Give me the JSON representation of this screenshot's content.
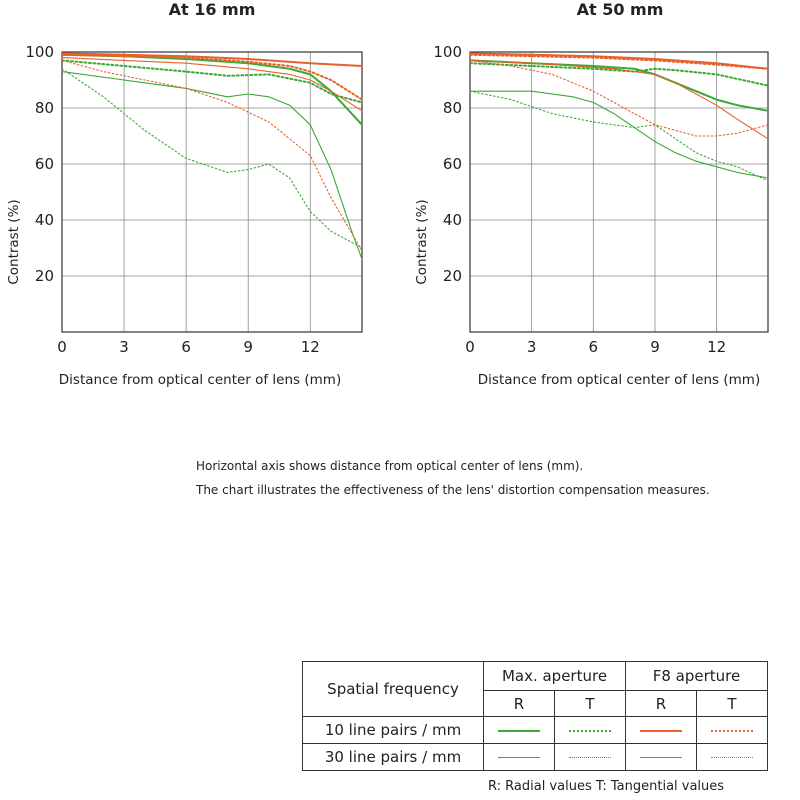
{
  "chart_data": [
    {
      "type": "line",
      "title": "At 16 mm",
      "xlabel": "Distance from optical center of lens (mm)",
      "ylabel": "Contrast (%)",
      "xlim": [
        0,
        14.5
      ],
      "ylim": [
        0,
        100
      ],
      "xticks": [
        "0",
        "3",
        "6",
        "9",
        "12"
      ],
      "yticks": [
        "20",
        "40",
        "60",
        "80",
        "100"
      ],
      "grid": true,
      "series": [
        {
          "name": "Max. aperture R 10 line pairs / mm",
          "color": "#3aaa35",
          "style": "solid",
          "weight": "bold",
          "x": [
            0,
            3,
            6,
            9,
            11,
            12,
            13,
            14.5
          ],
          "y": [
            99,
            98.5,
            97.5,
            96,
            94,
            92,
            86,
            74
          ]
        },
        {
          "name": "Max. aperture T 10 line pairs / mm",
          "color": "#3aaa35",
          "style": "dotted",
          "weight": "bold",
          "x": [
            0,
            3,
            6,
            8,
            10,
            12,
            13,
            14.5
          ],
          "y": [
            97,
            95,
            93,
            91.5,
            92,
            89,
            85,
            82
          ]
        },
        {
          "name": "Max. aperture R 30 line pairs / mm",
          "color": "#3aaa35",
          "style": "solid",
          "weight": "thin",
          "x": [
            0,
            3,
            6,
            8,
            9,
            10,
            11,
            12,
            13,
            14,
            14.5
          ],
          "y": [
            93,
            90,
            87,
            84,
            85,
            84,
            81,
            74,
            58,
            36,
            26
          ]
        },
        {
          "name": "Max. aperture T 30 line pairs / mm",
          "color": "#3aaa35",
          "style": "dotted",
          "weight": "thin",
          "x": [
            0,
            2,
            4,
            6,
            8,
            9,
            10,
            11,
            12,
            13,
            14.5
          ],
          "y": [
            94,
            84,
            72,
            62,
            57,
            58,
            60,
            55,
            43,
            36,
            30
          ]
        },
        {
          "name": "F8 aperture R 10 line pairs / mm",
          "color": "#e8602c",
          "style": "solid",
          "weight": "bold",
          "x": [
            0,
            3,
            6,
            9,
            12,
            14.5
          ],
          "y": [
            99.5,
            99,
            98.5,
            97.5,
            96,
            95
          ]
        },
        {
          "name": "F8 aperture T 10 line pairs / mm",
          "color": "#e8602c",
          "style": "dotted",
          "weight": "bold",
          "x": [
            0,
            3,
            6,
            9,
            11,
            12,
            13,
            14.5
          ],
          "y": [
            99,
            98.5,
            98,
            96.5,
            95,
            93,
            90,
            83
          ]
        },
        {
          "name": "F8 aperture R 30 line pairs / mm",
          "color": "#e8602c",
          "style": "solid",
          "weight": "thin",
          "x": [
            0,
            3,
            6,
            9,
            11,
            12,
            13,
            14.5
          ],
          "y": [
            98,
            97,
            96,
            94,
            92,
            90,
            86,
            79
          ]
        },
        {
          "name": "F8 aperture T 30 line pairs / mm",
          "color": "#e8602c",
          "style": "dotted",
          "weight": "thin",
          "x": [
            0,
            2,
            4,
            6,
            8,
            10,
            12,
            13,
            14.5
          ],
          "y": [
            97,
            93,
            90,
            87,
            82,
            75,
            63,
            48,
            29
          ]
        }
      ]
    },
    {
      "type": "line",
      "title": "At 50 mm",
      "xlabel": "Distance from optical center of lens (mm)",
      "ylabel": "Contrast (%)",
      "xlim": [
        0,
        14.5
      ],
      "ylim": [
        0,
        100
      ],
      "xticks": [
        "0",
        "3",
        "6",
        "9",
        "12"
      ],
      "yticks": [
        "20",
        "40",
        "60",
        "80",
        "100"
      ],
      "grid": true,
      "series": [
        {
          "name": "Max. aperture R 10 line pairs / mm",
          "color": "#3aaa35",
          "style": "solid",
          "weight": "bold",
          "x": [
            0,
            3,
            6,
            8,
            9,
            10,
            11,
            12,
            13,
            14.5
          ],
          "y": [
            97,
            96,
            95,
            94,
            92,
            89,
            86,
            83,
            81,
            79
          ]
        },
        {
          "name": "Max. aperture T 10 line pairs / mm",
          "color": "#3aaa35",
          "style": "dotted",
          "weight": "bold",
          "x": [
            0,
            3,
            6,
            8,
            9,
            10,
            12,
            14.5
          ],
          "y": [
            96,
            95,
            94,
            93,
            94,
            93.5,
            92,
            88
          ]
        },
        {
          "name": "Max. aperture R 30 line pairs / mm",
          "color": "#3aaa35",
          "style": "solid",
          "weight": "thin",
          "x": [
            0,
            3,
            5,
            6,
            7,
            8,
            9,
            10,
            11,
            12,
            13,
            14.5
          ],
          "y": [
            86,
            86,
            84,
            82,
            78,
            73,
            68,
            64,
            61,
            59,
            57,
            55
          ]
        },
        {
          "name": "Max. aperture T 30 line pairs / mm",
          "color": "#3aaa35",
          "style": "dotted",
          "weight": "thin",
          "x": [
            0,
            2,
            4,
            6,
            7,
            8,
            9,
            10,
            11,
            12,
            13,
            14.5
          ],
          "y": [
            86,
            83,
            78,
            75,
            74,
            73,
            74,
            69,
            64,
            61,
            59,
            54
          ]
        },
        {
          "name": "F8 aperture R 10 line pairs / mm",
          "color": "#e8602c",
          "style": "solid",
          "weight": "bold",
          "x": [
            0,
            3,
            6,
            9,
            12,
            14.5
          ],
          "y": [
            99.5,
            99,
            98.5,
            97.5,
            96,
            94
          ]
        },
        {
          "name": "F8 aperture T 10 line pairs / mm",
          "color": "#e8602c",
          "style": "dotted",
          "weight": "bold",
          "x": [
            0,
            3,
            6,
            9,
            12,
            14.5
          ],
          "y": [
            99,
            98.5,
            98,
            97,
            95.5,
            94
          ]
        },
        {
          "name": "F8 aperture R 30 line pairs / mm",
          "color": "#e8602c",
          "style": "solid",
          "weight": "thin",
          "x": [
            0,
            3,
            5,
            7,
            9,
            10,
            11,
            12,
            13,
            14.5
          ],
          "y": [
            97,
            96,
            95,
            94,
            92,
            89,
            85,
            81,
            76,
            69
          ]
        },
        {
          "name": "F8 aperture T 30 line pairs / mm",
          "color": "#e8602c",
          "style": "dotted",
          "weight": "thin",
          "x": [
            0,
            2,
            4,
            6,
            7,
            8,
            9,
            10,
            11,
            12,
            13,
            14.5
          ],
          "y": [
            97,
            95,
            92,
            86,
            82,
            78,
            74,
            72,
            70,
            70,
            71,
            74
          ]
        }
      ]
    }
  ],
  "notes": {
    "line1": "Horizontal axis shows distance from optical center of lens (mm).",
    "line2": "The chart illustrates the effectiveness of the lens' distortion compensation measures."
  },
  "legend": {
    "header_freq": "Spatial frequency",
    "header_max": "Max. aperture",
    "header_f8": "F8 aperture",
    "col_r": "R",
    "col_t": "T",
    "row1": "10 line pairs / mm",
    "row2": "30 line pairs / mm",
    "green": "#3aaa35",
    "orange": "#e8602c"
  },
  "footer": "R: Radial values  T: Tangential values"
}
